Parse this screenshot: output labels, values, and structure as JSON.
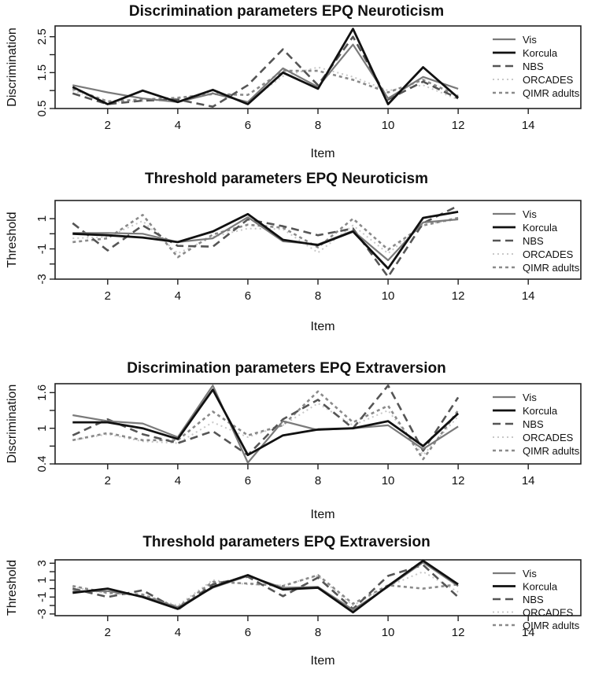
{
  "chart_data": [
    {
      "type": "line",
      "title": "Discrimination parameters EPQ Neuroticism",
      "xlabel": "Item",
      "ylabel": "Discrimination",
      "xlim": [
        0.5,
        15.5
      ],
      "ylim": [
        0.5,
        2.8
      ],
      "xticks": [
        2,
        4,
        6,
        8,
        10,
        12,
        14
      ],
      "yticks": [
        0.5,
        1.5,
        2.5
      ],
      "extra_yticks": [
        1.0,
        2.0
      ],
      "legend_position": "right",
      "x": [
        1,
        2,
        3,
        4,
        5,
        6,
        7,
        8,
        9,
        10,
        11,
        12
      ],
      "series": [
        {
          "name": "Vis",
          "style": "vis",
          "values": [
            1.15,
            0.95,
            0.78,
            0.68,
            0.92,
            0.68,
            1.62,
            1.1,
            2.28,
            0.78,
            1.38,
            1.05
          ]
        },
        {
          "name": "Korcula",
          "style": "korcula",
          "values": [
            1.1,
            0.62,
            1.0,
            0.68,
            1.02,
            0.62,
            1.5,
            1.05,
            2.72,
            0.62,
            1.65,
            0.8
          ]
        },
        {
          "name": "NBS",
          "style": "nbs",
          "values": [
            0.92,
            0.62,
            0.72,
            0.75,
            0.55,
            1.15,
            2.15,
            1.15,
            2.5,
            0.75,
            1.25,
            0.78
          ]
        },
        {
          "name": "ORCADES",
          "style": "orcades",
          "values": [
            1.0,
            0.68,
            0.7,
            0.78,
            0.95,
            0.68,
            1.4,
            1.65,
            1.38,
            1.0,
            1.15,
            0.75
          ]
        },
        {
          "name": "QIMR adults",
          "style": "qimr",
          "values": [
            1.05,
            0.7,
            0.75,
            0.8,
            0.9,
            0.88,
            1.55,
            1.55,
            1.3,
            0.95,
            1.3,
            0.85
          ]
        }
      ]
    },
    {
      "type": "line",
      "title": "Threshold parameters EPQ Neuroticism",
      "xlabel": "Item",
      "ylabel": "Threshold",
      "xlim": [
        0.5,
        15.5
      ],
      "ylim": [
        -3.0,
        2.2
      ],
      "xticks": [
        2,
        4,
        6,
        8,
        10,
        12,
        14
      ],
      "yticks": [
        -3,
        -1,
        1
      ],
      "extra_yticks": [
        -2,
        0
      ],
      "legend_position": "right",
      "x": [
        1,
        2,
        3,
        4,
        5,
        6,
        7,
        8,
        9,
        10,
        11,
        12
      ],
      "series": [
        {
          "name": "Vis",
          "style": "vis",
          "values": [
            0.05,
            0.05,
            0.0,
            -0.55,
            -0.3,
            1.1,
            -0.5,
            -0.7,
            0.2,
            -1.75,
            0.75,
            0.95
          ]
        },
        {
          "name": "Korcula",
          "style": "korcula",
          "values": [
            0.0,
            -0.1,
            -0.25,
            -0.55,
            0.15,
            1.3,
            -0.4,
            -0.75,
            0.15,
            -2.3,
            1.05,
            1.45
          ]
        },
        {
          "name": "NBS",
          "style": "nbs",
          "values": [
            0.7,
            -1.1,
            0.55,
            -0.8,
            -0.85,
            0.95,
            0.5,
            -0.1,
            0.35,
            -2.85,
            0.7,
            1.85
          ]
        },
        {
          "name": "ORCADES",
          "style": "orcades",
          "values": [
            -0.3,
            -0.2,
            0.85,
            -1.3,
            -0.2,
            0.35,
            0.3,
            -1.25,
            0.55,
            -1.3,
            0.6,
            0.95
          ]
        },
        {
          "name": "QIMR adults",
          "style": "qimr",
          "values": [
            -0.55,
            -0.3,
            1.25,
            -1.55,
            -0.05,
            0.6,
            0.4,
            -0.9,
            1.0,
            -1.05,
            0.55,
            1.05
          ]
        }
      ]
    },
    {
      "type": "line",
      "title": "Discrimination parameters EPQ Extraversion",
      "xlabel": "Item",
      "ylabel": "Discrimination",
      "xlim": [
        0.5,
        15.5
      ],
      "ylim": [
        0.4,
        1.75
      ],
      "xticks": [
        2,
        4,
        6,
        8,
        10,
        12,
        14
      ],
      "yticks": [
        0.4,
        1.0,
        1.6
      ],
      "extra_yticks": [
        0.7,
        1.3
      ],
      "legend_position": "right",
      "x": [
        1,
        2,
        3,
        4,
        5,
        6,
        7,
        8,
        9,
        10,
        11,
        12
      ],
      "series": [
        {
          "name": "Vis",
          "style": "vis",
          "values": [
            1.22,
            1.12,
            1.08,
            0.85,
            1.72,
            0.42,
            1.12,
            0.97,
            1.0,
            1.05,
            0.65,
            1.03
          ]
        },
        {
          "name": "Korcula",
          "style": "korcula",
          "values": [
            1.1,
            1.1,
            1.0,
            0.82,
            1.65,
            0.55,
            0.88,
            0.98,
            1.0,
            1.12,
            0.7,
            1.25
          ]
        },
        {
          "name": "NBS",
          "style": "nbs",
          "values": [
            0.88,
            1.15,
            0.9,
            0.75,
            0.95,
            0.55,
            1.15,
            1.48,
            1.0,
            1.72,
            0.62,
            1.52
          ]
        },
        {
          "name": "ORCADES",
          "style": "orcades",
          "values": [
            0.8,
            0.9,
            0.78,
            0.75,
            1.1,
            0.85,
            1.05,
            1.42,
            1.05,
            1.3,
            0.55,
            1.2
          ]
        },
        {
          "name": "QIMR adults",
          "style": "qimr",
          "values": [
            0.8,
            0.92,
            0.8,
            0.8,
            1.28,
            0.88,
            1.05,
            1.62,
            1.1,
            1.38,
            0.48,
            1.3
          ]
        }
      ]
    },
    {
      "type": "line",
      "title": "Threshold parameters EPQ Extraversion",
      "xlabel": "Item",
      "ylabel": "Threshold",
      "xlim": [
        0.5,
        15.5
      ],
      "ylim": [
        -3.2,
        3.4
      ],
      "xticks": [
        2,
        4,
        6,
        8,
        10,
        12,
        14
      ],
      "yticks": [
        -3,
        -1,
        1,
        3
      ],
      "extra_yticks": [
        -2,
        0,
        2
      ],
      "legend_position": "right",
      "x": [
        1,
        2,
        3,
        4,
        5,
        6,
        7,
        8,
        9,
        10,
        11,
        12
      ],
      "series": [
        {
          "name": "Vis",
          "style": "vis",
          "values": [
            -0.3,
            -0.3,
            -0.9,
            -2.2,
            0.1,
            1.5,
            0.1,
            0.2,
            -2.5,
            0.2,
            3.1,
            0.3
          ]
        },
        {
          "name": "Korcula",
          "style": "korcula",
          "values": [
            -0.5,
            0.0,
            -1.0,
            -2.4,
            0.2,
            1.6,
            -0.1,
            0.1,
            -2.8,
            0.3,
            3.3,
            0.5
          ]
        },
        {
          "name": "NBS",
          "style": "nbs",
          "values": [
            0.0,
            -1.0,
            -0.2,
            -2.5,
            0.5,
            1.4,
            -0.9,
            1.3,
            -2.4,
            1.5,
            2.8,
            -1.0
          ]
        },
        {
          "name": "ORCADES",
          "style": "orcades",
          "values": [
            0.2,
            -0.6,
            -0.8,
            -2.0,
            1.0,
            0.5,
            0.4,
            1.5,
            -2.0,
            0.3,
            2.0,
            -0.4
          ]
        },
        {
          "name": "QIMR adults",
          "style": "qimr",
          "values": [
            0.3,
            -0.5,
            -0.7,
            -2.2,
            0.8,
            0.6,
            0.3,
            1.6,
            -1.8,
            0.4,
            0.0,
            0.5
          ]
        }
      ]
    }
  ],
  "styles": {
    "vis": {
      "color": "#7a7a7a",
      "width": 2.2,
      "dash": ""
    },
    "korcula": {
      "color": "#111111",
      "width": 2.8,
      "dash": ""
    },
    "nbs": {
      "color": "#555555",
      "width": 2.6,
      "dash": "10 6"
    },
    "orcades": {
      "color": "#c8c8c8",
      "width": 2.0,
      "dash": "2 4"
    },
    "qimr": {
      "color": "#8a8a8a",
      "width": 2.6,
      "dash": "4 4"
    }
  }
}
